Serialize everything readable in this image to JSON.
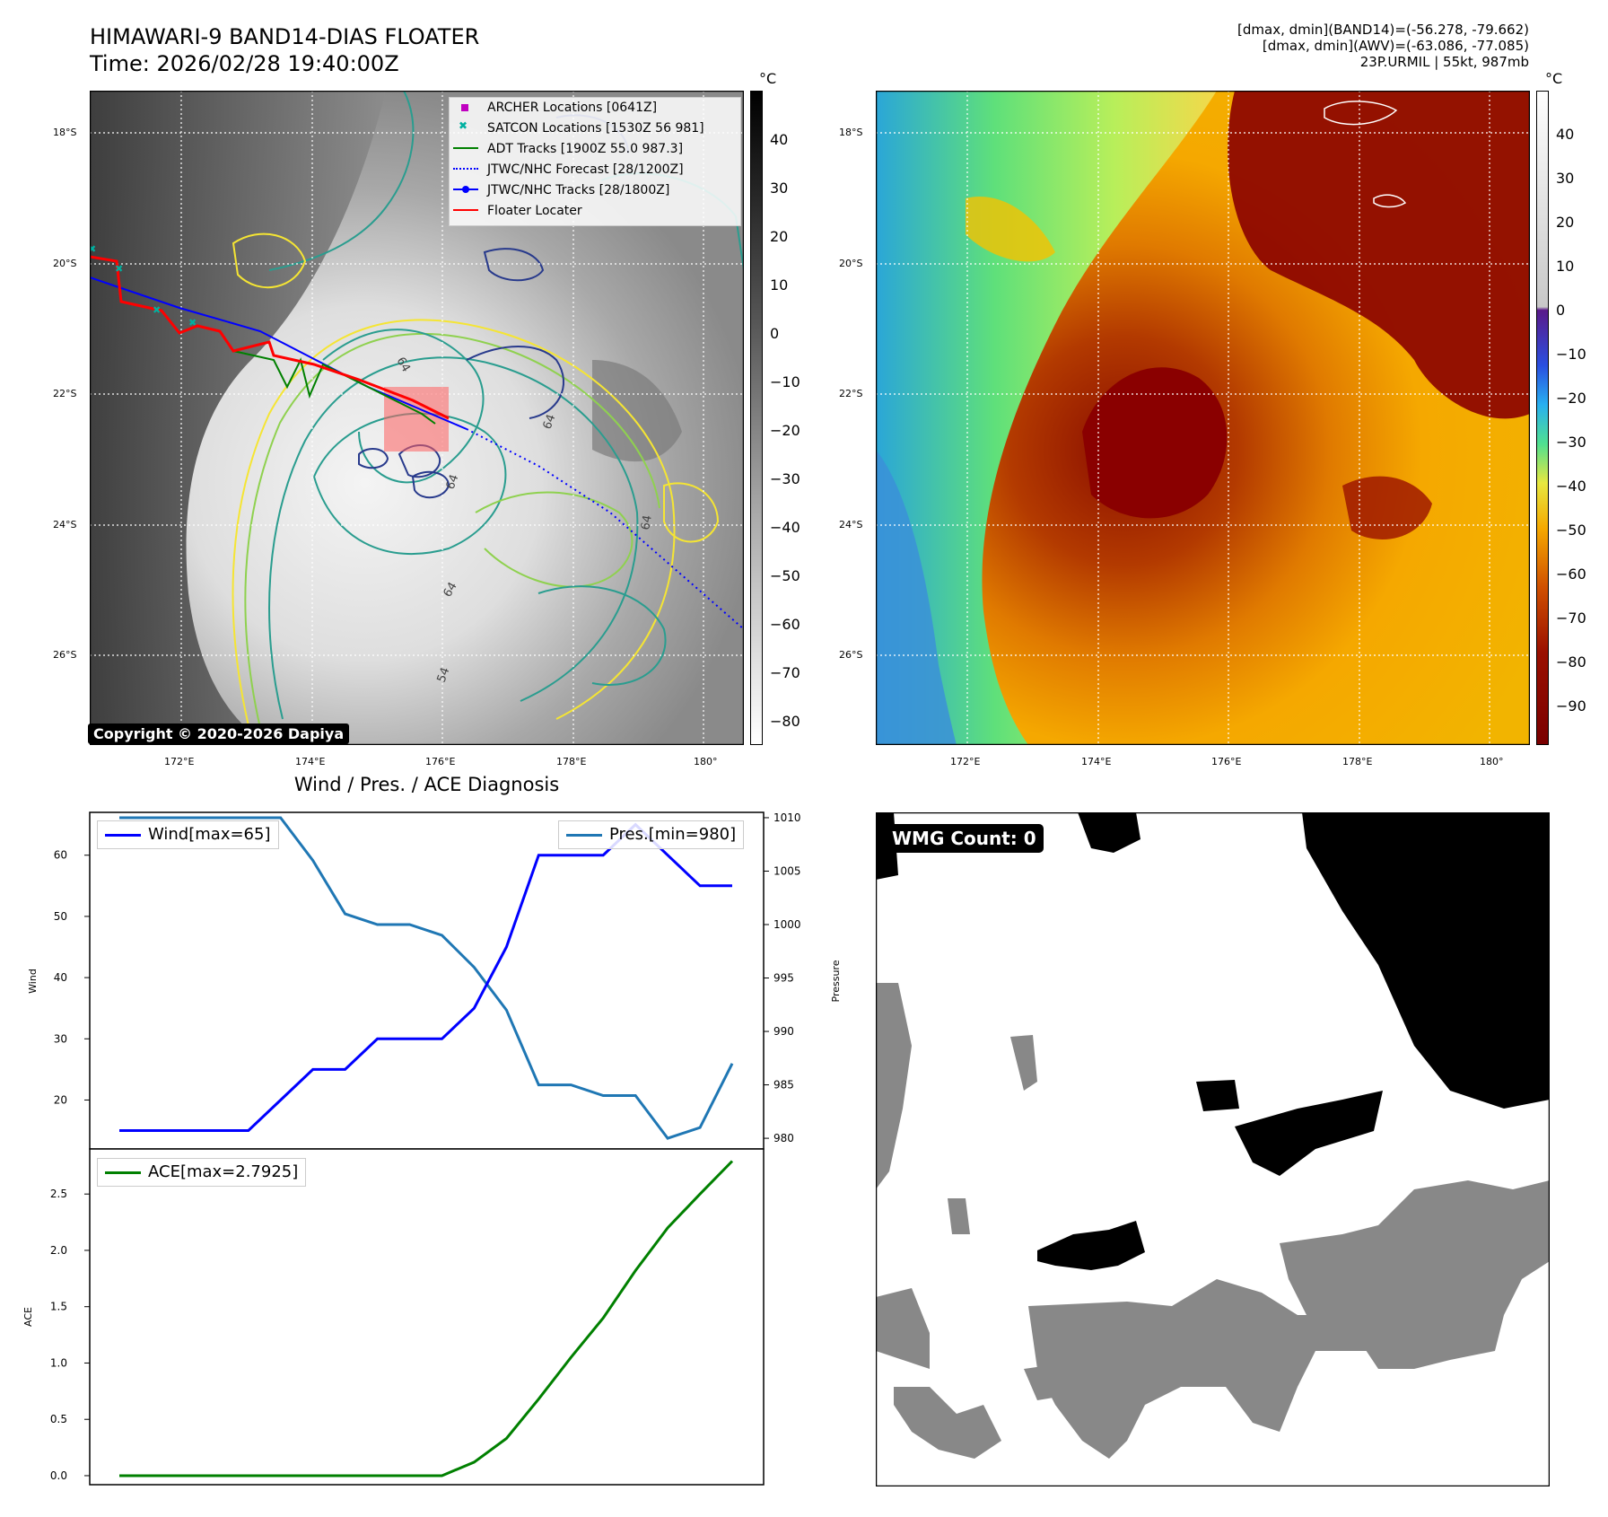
{
  "header": {
    "title_line1": "HIMAWARI-9 BAND14-DIAS FLOATER",
    "title_line2": "Time: 2026/02/28 19:40:00Z",
    "info_line1": "[dmax, dmin](BAND14)=(-56.278, -79.662)",
    "info_line2": "[dmax, dmin](AWV)=(-63.086, -77.085)",
    "info_line3": "23P.URMIL | 55kt, 987mb"
  },
  "map_left": {
    "lat_labels": [
      "18°S",
      "20°S",
      "22°S",
      "24°S",
      "26°S"
    ],
    "lon_labels": [
      "172°E",
      "174°E",
      "176°E",
      "178°E",
      "180°"
    ],
    "colorbar_unit": "°C",
    "colorbar_ticks": [
      "40",
      "30",
      "20",
      "10",
      "0",
      "−10",
      "−20",
      "−30",
      "−40",
      "−50",
      "−60",
      "−70",
      "−80"
    ],
    "copyright": "Copyright © 2020-2026 Dapiya",
    "legend": [
      {
        "label": "ARCHER Locations [0641Z]",
        "color": "#c000c0",
        "icon": "square-marker-icon"
      },
      {
        "label": "SATCON Locations [1530Z 56 981]",
        "color": "#00b0a0",
        "icon": "x-marker-icon"
      },
      {
        "label": "ADT Tracks [1900Z 55.0 987.3]",
        "color": "#008000",
        "icon": "line-icon"
      },
      {
        "label": "JTWC/NHC Forecast [28/1200Z]",
        "color": "#0000ff",
        "icon": "dotted-line-icon"
      },
      {
        "label": "JTWC/NHC Tracks [28/1800Z]",
        "color": "#0000ff",
        "icon": "line-dot-icon"
      },
      {
        "label": "Floater Locater",
        "color": "#ff0000",
        "icon": "line-icon"
      }
    ],
    "contour_labels": [
      "64",
      "64",
      "64",
      "64",
      "54",
      "64"
    ]
  },
  "map_right": {
    "lat_labels": [
      "18°S",
      "20°S",
      "22°S",
      "24°S",
      "26°S"
    ],
    "lon_labels": [
      "172°E",
      "174°E",
      "176°E",
      "178°E",
      "180°"
    ],
    "colorbar_unit": "°C",
    "colorbar_ticks": [
      "40",
      "30",
      "20",
      "10",
      "0",
      "−10",
      "−20",
      "−30",
      "−40",
      "−50",
      "−60",
      "−70",
      "−80",
      "−90"
    ]
  },
  "diag": {
    "title": "Wind / Pres. / ACE Diagnosis",
    "wind_ylabel": "Wind",
    "pres_ylabel": "Pressure",
    "ace_ylabel": "ACE",
    "wind_ticks": [
      "60",
      "50",
      "40",
      "30",
      "20"
    ],
    "pres_ticks": [
      "1010",
      "1005",
      "1000",
      "995",
      "990",
      "985",
      "980"
    ],
    "ace_ticks": [
      "2.5",
      "2.0",
      "1.5",
      "1.0",
      "0.5",
      "0.0"
    ],
    "wind_legend": "Wind[max=65]",
    "pres_legend": "Pres.[min=980]",
    "ace_legend": "ACE[max=2.7925]",
    "wind_color": "#0000ff",
    "pres_color": "#1f77b4",
    "ace_color": "#008000"
  },
  "wmg": {
    "label": "WMG Count: 0"
  },
  "chart_data": [
    {
      "type": "line",
      "title": "Wind / Pres. / ACE Diagnosis",
      "x": [
        0,
        1,
        2,
        3,
        4,
        5,
        6,
        7,
        8,
        9,
        10,
        11,
        12,
        13,
        14,
        15,
        16,
        17,
        18,
        19
      ],
      "series": [
        {
          "name": "Wind[max=65]",
          "axis": "left",
          "ylabel": "Wind",
          "values": [
            15,
            15,
            15,
            15,
            15,
            20,
            25,
            25,
            30,
            30,
            30,
            35,
            45,
            60,
            60,
            60,
            65,
            60,
            55,
            55
          ]
        },
        {
          "name": "Pres.[min=980]",
          "axis": "right",
          "ylabel": "Pressure",
          "values": [
            1010,
            1010,
            1010,
            1010,
            1010,
            1010,
            1006,
            1001,
            1000,
            1000,
            999,
            996,
            992,
            985,
            985,
            984,
            984,
            980,
            981,
            987
          ]
        }
      ],
      "ylim_left": [
        12,
        67
      ],
      "ylim_right": [
        979,
        1010.5
      ]
    },
    {
      "type": "line",
      "x": [
        0,
        1,
        2,
        3,
        4,
        5,
        6,
        7,
        8,
        9,
        10,
        11,
        12,
        13,
        14,
        15,
        16,
        17,
        18,
        19
      ],
      "series": [
        {
          "name": "ACE[max=2.7925]",
          "ylabel": "ACE",
          "values": [
            0,
            0,
            0,
            0,
            0,
            0,
            0,
            0,
            0,
            0,
            0,
            0.12,
            0.33,
            0.68,
            1.05,
            1.4,
            1.82,
            2.2,
            2.5,
            2.7925
          ]
        }
      ],
      "ylim": [
        -0.08,
        2.9
      ]
    }
  ]
}
